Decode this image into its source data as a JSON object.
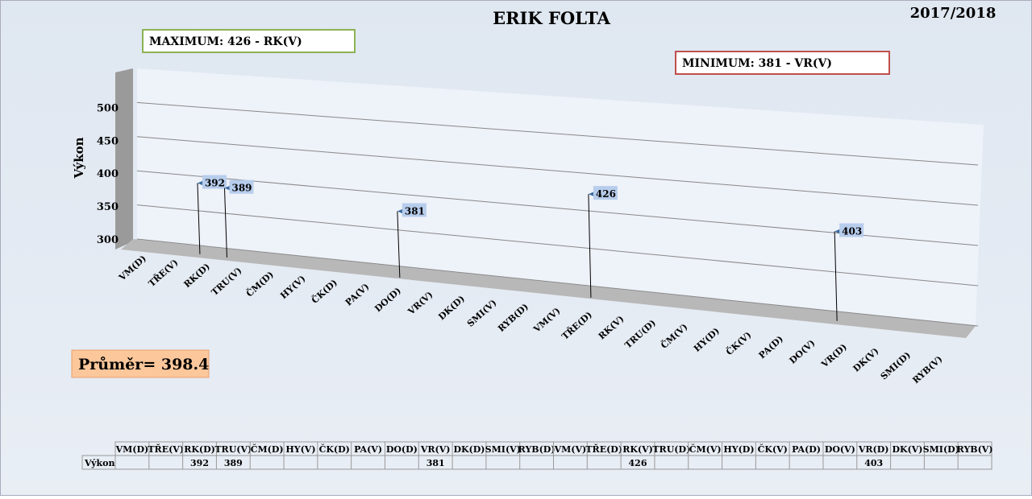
{
  "chart_data": {
    "type": "line3d",
    "title": "ERIK FOLTA",
    "subtitle": "2017/2018",
    "y_label": "Výkon",
    "categories": [
      "VM(D)",
      "TŘE(V)",
      "RK(D)",
      "TRU(V)",
      "ČM(D)",
      "HY(V)",
      "ČK(D)",
      "PA(V)",
      "DO(D)",
      "VR(V)",
      "DK(D)",
      "SMI(V)",
      "RYB(D)",
      "VM(V)",
      "TŘE(D)",
      "RK(V)",
      "TRU(D)",
      "ČM(V)",
      "HY(D)",
      "ČK(V)",
      "PA(D)",
      "DO(V)",
      "VR(D)",
      "DK(V)",
      "SMI(D)",
      "RYB(V)"
    ],
    "series": [
      {
        "name": "Výkon",
        "color": "#000000",
        "values": [
          null,
          null,
          392,
          389,
          null,
          null,
          null,
          null,
          null,
          381,
          null,
          null,
          null,
          null,
          null,
          426,
          null,
          null,
          null,
          null,
          null,
          null,
          403,
          null,
          null,
          null
        ]
      }
    ],
    "ylim": [
      300,
      550
    ],
    "yticks": [
      300,
      350,
      400,
      450,
      500
    ],
    "grid": true,
    "annotations": {
      "maximum": "MAXIMUM: 426 - RK(V)",
      "minimum": "MINIMUM:  381 - VR(V)",
      "average": "Průměr= 398.4"
    }
  }
}
